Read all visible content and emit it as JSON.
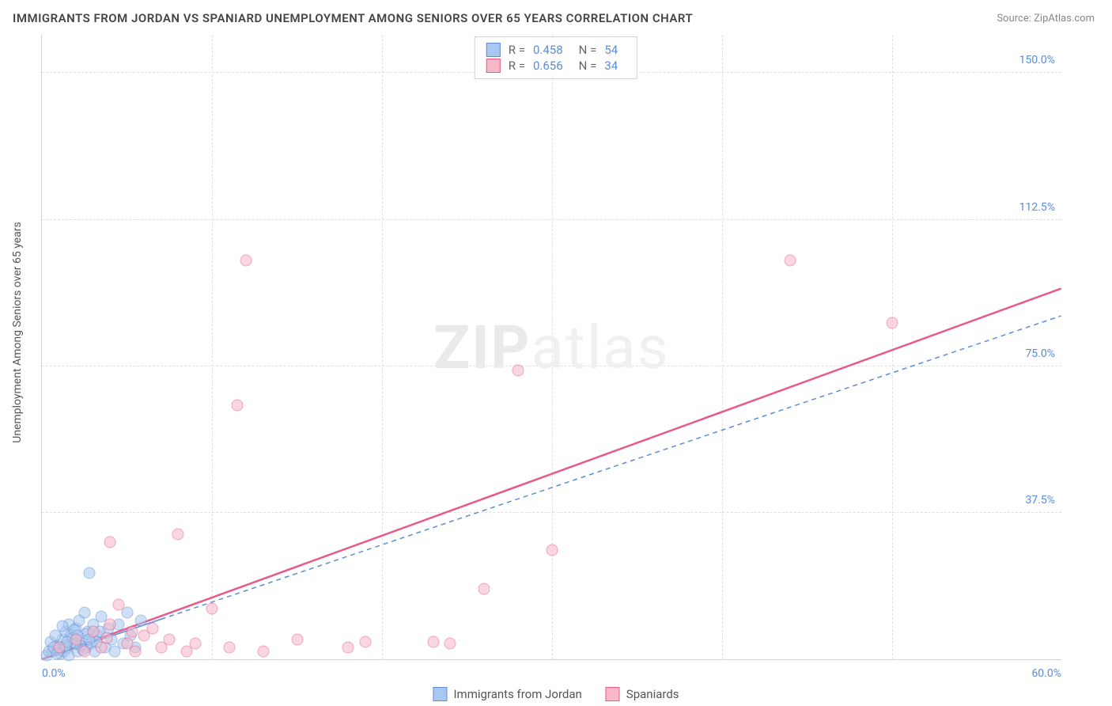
{
  "title": "IMMIGRANTS FROM JORDAN VS SPANIARD UNEMPLOYMENT AMONG SENIORS OVER 65 YEARS CORRELATION CHART",
  "source_label": "Source:",
  "source_name": "ZipAtlas.com",
  "watermark_bold": "ZIP",
  "watermark_rest": "atlas",
  "ylabel": "Unemployment Among Seniors over 65 years",
  "chart": {
    "type": "scatter",
    "xlim": [
      0,
      60
    ],
    "ylim": [
      0,
      160
    ],
    "xticks": [
      0,
      60
    ],
    "xtick_labels": [
      "0.0%",
      "60.0%"
    ],
    "yticks": [
      37.5,
      75.0,
      112.5,
      150.0
    ],
    "ytick_labels": [
      "37.5%",
      "75.0%",
      "112.5%",
      "150.0%"
    ],
    "x_minor_grid": [
      10,
      20,
      30,
      40,
      50
    ],
    "y_minor_grid": [
      37.5,
      75.0,
      112.5,
      150.0
    ],
    "grid_color": "#e0e0e0",
    "background_color": "#ffffff",
    "axis_color": "#d0d0d0",
    "tick_label_color": "#5a8dd6",
    "series": [
      {
        "name": "Immigrants from Jordan",
        "key": "jordan",
        "marker_fill": "#a9c8ef",
        "marker_stroke": "#5a8dd6",
        "fill_opacity": 0.55,
        "marker_size": 15,
        "R": "0.458",
        "N": "54",
        "trend": {
          "x1": 0,
          "y1": 0,
          "x2": 60,
          "y2": 88,
          "stroke": "#5a8dd6",
          "width": 1.5,
          "dash": "6,5",
          "solid_until_x": 7
        },
        "points": [
          [
            0.3,
            1.0
          ],
          [
            0.6,
            2.0
          ],
          [
            0.9,
            3.5
          ],
          [
            1.1,
            1.5
          ],
          [
            1.2,
            5.0
          ],
          [
            1.3,
            2.0
          ],
          [
            1.4,
            7.0
          ],
          [
            1.5,
            3.0
          ],
          [
            1.6,
            1.0
          ],
          [
            1.7,
            6.0
          ],
          [
            1.9,
            4.0
          ],
          [
            2.0,
            8.0
          ],
          [
            2.1,
            2.0
          ],
          [
            2.2,
            10.0
          ],
          [
            2.4,
            5.0
          ],
          [
            2.5,
            12.0
          ],
          [
            2.6,
            3.0
          ],
          [
            2.7,
            7.0
          ],
          [
            2.8,
            22.0
          ],
          [
            2.9,
            4.0
          ],
          [
            3.0,
            9.0
          ],
          [
            3.1,
            2.0
          ],
          [
            3.3,
            6.0
          ],
          [
            3.5,
            11.0
          ],
          [
            3.7,
            3.0
          ],
          [
            3.9,
            8.0
          ],
          [
            4.1,
            5.0
          ],
          [
            4.3,
            2.0
          ],
          [
            4.5,
            9.0
          ],
          [
            4.8,
            4.0
          ],
          [
            5.0,
            12.0
          ],
          [
            5.2,
            6.0
          ],
          [
            5.5,
            3.0
          ],
          [
            5.8,
            10.0
          ],
          [
            0.5,
            4.5
          ],
          [
            0.8,
            6.0
          ],
          [
            1.0,
            2.5
          ],
          [
            1.6,
            9.0
          ],
          [
            2.3,
            3.5
          ],
          [
            0.4,
            2.0
          ],
          [
            0.7,
            3.0
          ],
          [
            1.8,
            5.5
          ],
          [
            2.0,
            4.0
          ],
          [
            2.6,
            6.5
          ],
          [
            3.2,
            4.5
          ],
          [
            1.4,
            3.5
          ],
          [
            1.9,
            7.5
          ],
          [
            0.9,
            1.5
          ],
          [
            1.2,
            8.5
          ],
          [
            1.5,
            4.5
          ],
          [
            2.1,
            6.0
          ],
          [
            2.4,
            2.5
          ],
          [
            2.8,
            5.0
          ],
          [
            3.4,
            7.0
          ]
        ]
      },
      {
        "name": "Spaniards",
        "key": "spain",
        "marker_fill": "#f7b8c8",
        "marker_stroke": "#e75a8a",
        "fill_opacity": 0.55,
        "marker_size": 15,
        "R": "0.656",
        "N": "34",
        "trend": {
          "x1": 0,
          "y1": 0,
          "x2": 60,
          "y2": 95,
          "stroke": "#e75a8a",
          "width": 2.5,
          "dash": "",
          "solid_until_x": 60
        },
        "points": [
          [
            1.0,
            3.0
          ],
          [
            2.0,
            5.0
          ],
          [
            2.5,
            2.0
          ],
          [
            3.0,
            7.0
          ],
          [
            3.5,
            3.0
          ],
          [
            4.0,
            9.0
          ],
          [
            4.5,
            14.0
          ],
          [
            5.0,
            4.0
          ],
          [
            5.5,
            2.0
          ],
          [
            6.0,
            6.0
          ],
          [
            7.0,
            3.0
          ],
          [
            8.0,
            32.0
          ],
          [
            8.5,
            2.0
          ],
          [
            9.0,
            4.0
          ],
          [
            10.0,
            13.0
          ],
          [
            11.0,
            3.0
          ],
          [
            11.5,
            65.0
          ],
          [
            12.0,
            102.0
          ],
          [
            13.0,
            2.0
          ],
          [
            15.0,
            5.0
          ],
          [
            18.0,
            3.0
          ],
          [
            19.0,
            4.5
          ],
          [
            23.0,
            4.5
          ],
          [
            24.0,
            4.0
          ],
          [
            26.0,
            18.0
          ],
          [
            28.0,
            74.0
          ],
          [
            30.0,
            28.0
          ],
          [
            44.0,
            102.0
          ],
          [
            50.0,
            86.0
          ],
          [
            4.0,
            30.0
          ],
          [
            6.5,
            8.0
          ],
          [
            3.8,
            5.5
          ],
          [
            5.3,
            7.0
          ],
          [
            7.5,
            5.0
          ]
        ]
      }
    ]
  },
  "legend_top_labels": {
    "R": "R =",
    "N": "N ="
  },
  "legend_bottom": [
    {
      "label": "Immigrants from Jordan",
      "fill": "#a9c8ef",
      "stroke": "#5a8dd6"
    },
    {
      "label": "Spaniards",
      "fill": "#f7b8c8",
      "stroke": "#e75a8a"
    }
  ]
}
